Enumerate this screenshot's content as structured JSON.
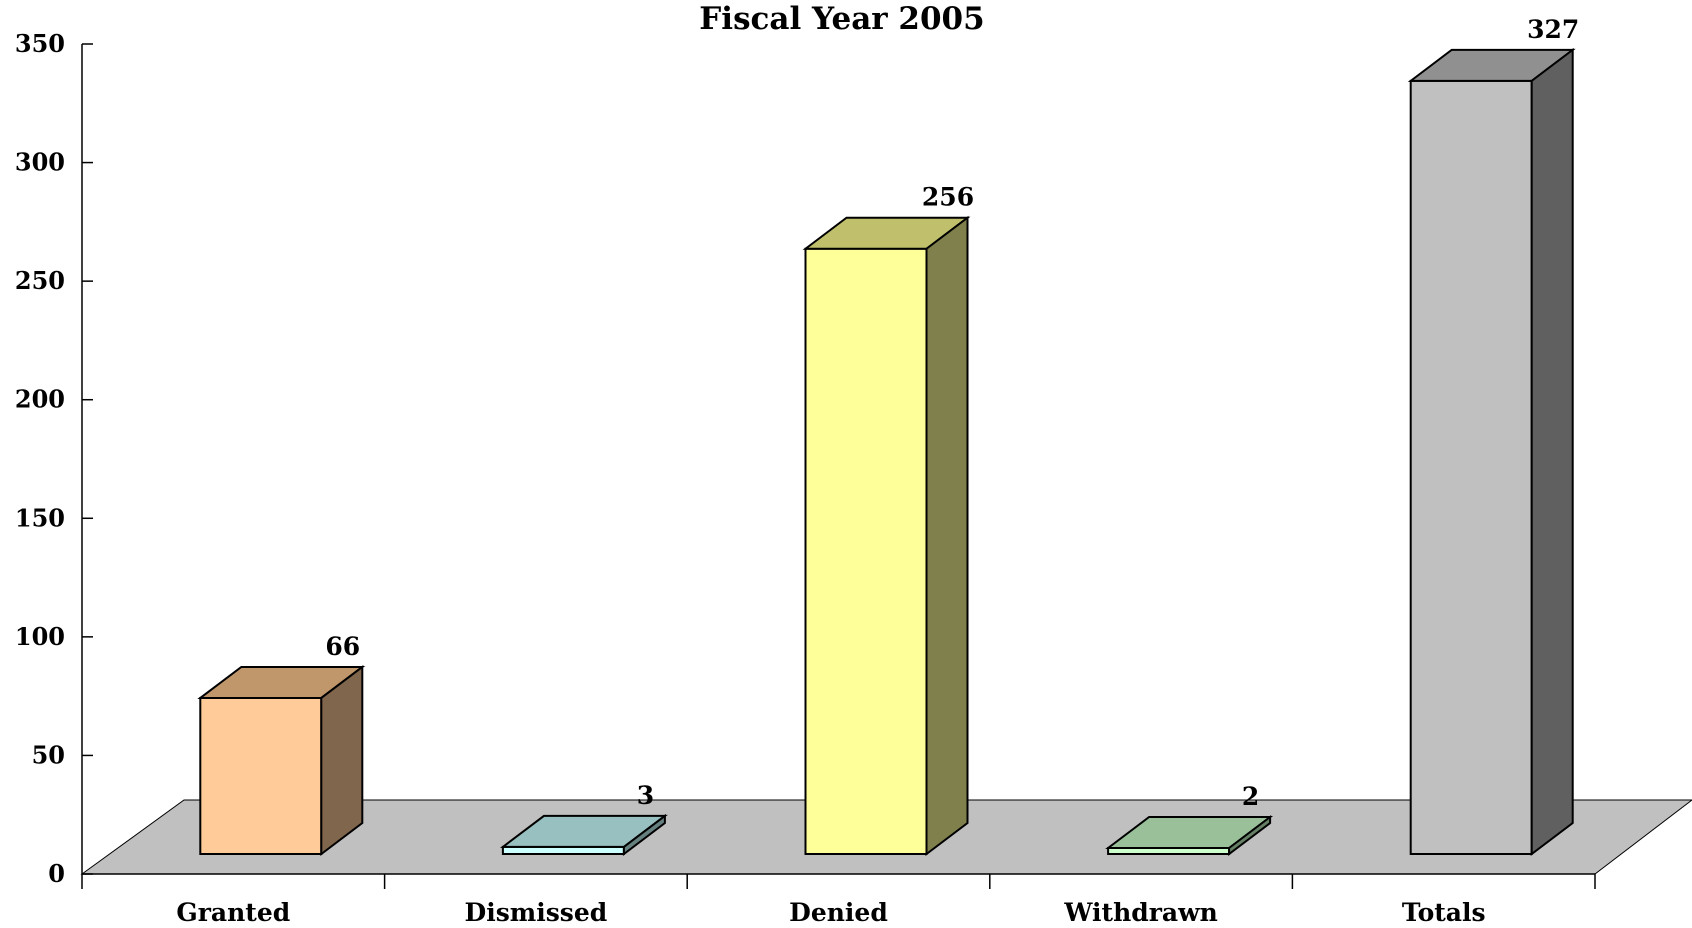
{
  "chart_data": {
    "type": "bar",
    "title": "Fiscal Year 2005",
    "xlabel": "",
    "ylabel": "",
    "categories": [
      "Granted",
      "Dismissed",
      "Denied",
      "Withdrawn",
      "Totals"
    ],
    "values": [
      66,
      3,
      256,
      2,
      327
    ],
    "ylim": [
      0,
      350
    ],
    "yticks": [
      0,
      50,
      100,
      150,
      200,
      250,
      300,
      350
    ],
    "grid": false,
    "legend": "none",
    "three_d": true,
    "floor_color": "#c0c0c0",
    "bar_colors": [
      {
        "front": "#ffcc99",
        "top": "#c0976a",
        "side": "#80664c"
      },
      {
        "front": "#ccffff",
        "top": "#99c0c0",
        "side": "#668080"
      },
      {
        "front": "#ffff99",
        "top": "#c0c06c",
        "side": "#80804c"
      },
      {
        "front": "#ccffcc",
        "top": "#99c099",
        "side": "#668066"
      },
      {
        "front": "#c0c0c0",
        "top": "#909090",
        "side": "#606060"
      }
    ]
  }
}
